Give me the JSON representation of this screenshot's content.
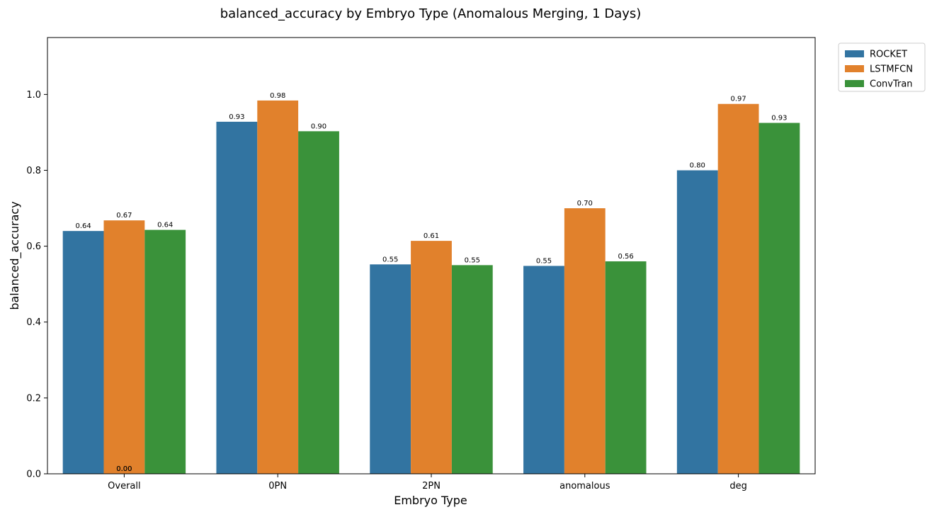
{
  "chart_data": {
    "type": "bar",
    "title": "balanced_accuracy by Embryo Type (Anomalous Merging, 1 Days)",
    "xlabel": "Embryo Type",
    "ylabel": "balanced_accuracy",
    "categories": [
      "Overall",
      "0PN",
      "2PN",
      "anomalous",
      "deg"
    ],
    "series": [
      {
        "name": "ROCKET",
        "color": "#3274a1",
        "values": [
          0.64,
          0.928,
          0.552,
          0.548,
          0.8
        ]
      },
      {
        "name": "LSTMFCN",
        "color": "#e1812c",
        "values": [
          0.668,
          0.984,
          0.614,
          0.7,
          0.975
        ]
      },
      {
        "name": "ConvTran",
        "color": "#3a923a",
        "values": [
          0.643,
          0.903,
          0.55,
          0.56,
          0.925
        ]
      }
    ],
    "data_labels": [
      [
        "0.64",
        "0.67",
        "0.64"
      ],
      [
        "0.93",
        "0.98",
        "0.90"
      ],
      [
        "0.55",
        "0.61",
        "0.55"
      ],
      [
        "0.55",
        "0.70",
        "0.56"
      ],
      [
        "0.80",
        "0.97",
        "0.93"
      ]
    ],
    "extra_labels": [
      {
        "category": "Overall",
        "text": "0.00"
      },
      {
        "category": "Overall",
        "text": "0.00"
      }
    ],
    "ylim": [
      0,
      1.15
    ],
    "yticks": [
      "0.0",
      "0.2",
      "0.4",
      "0.6",
      "0.8",
      "1.0"
    ],
    "grid": false,
    "legend_position": "outside top-right"
  }
}
